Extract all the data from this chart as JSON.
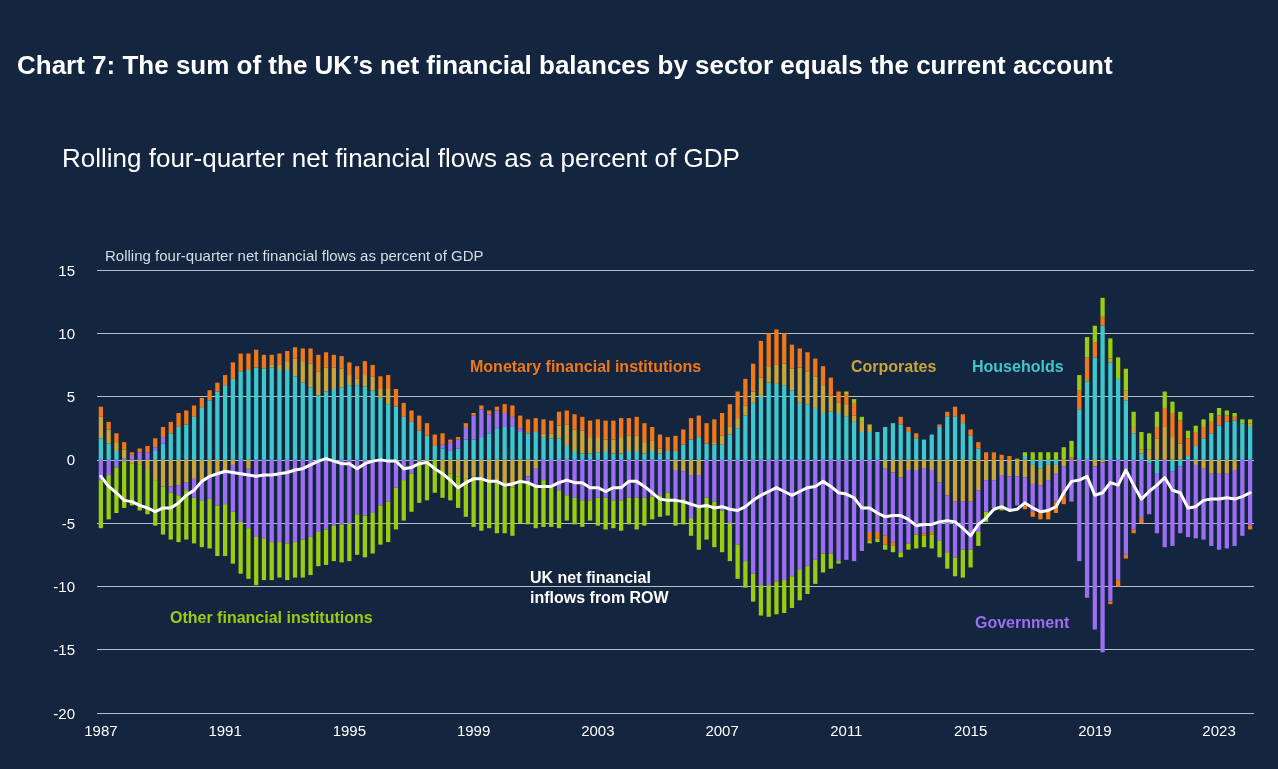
{
  "chart_data": {
    "type": "bar",
    "stacked": true,
    "title": "Chart 7: The sum of the UK’s net financial balances by sector equals the current account",
    "subtitle": "Rolling four-quarter net financial flows as a percent of GDP",
    "ylabel": "Rolling four-quarter net financial flows as percent of GDP",
    "categories": [
      "1987",
      null,
      null,
      null,
      null,
      null,
      null,
      null,
      null,
      null,
      null,
      null,
      null,
      null,
      null,
      null,
      "1991",
      null,
      null,
      null,
      null,
      null,
      null,
      null,
      null,
      null,
      null,
      null,
      null,
      null,
      null,
      null,
      "1995",
      null,
      null,
      null,
      null,
      null,
      null,
      null,
      null,
      null,
      null,
      null,
      null,
      null,
      null,
      null,
      "1999",
      null,
      null,
      null,
      null,
      null,
      null,
      null,
      null,
      null,
      null,
      null,
      null,
      null,
      null,
      null,
      "2003",
      null,
      null,
      null,
      null,
      null,
      null,
      null,
      null,
      null,
      null,
      null,
      null,
      null,
      null,
      null,
      "2007",
      null,
      null,
      null,
      null,
      null,
      null,
      null,
      null,
      null,
      null,
      null,
      null,
      null,
      null,
      null,
      "2011",
      null,
      null,
      null,
      null,
      null,
      null,
      null,
      null,
      null,
      null,
      null,
      null,
      null,
      null,
      null,
      "2015",
      null,
      null,
      null,
      null,
      null,
      null,
      null,
      null,
      null,
      null,
      null,
      null,
      null,
      null,
      null,
      "2019",
      null,
      null,
      null,
      null,
      null,
      null,
      null,
      null,
      null,
      null,
      null,
      null,
      null,
      null,
      null,
      "2023",
      null,
      null,
      null,
      null
    ],
    "ylim": [
      -20,
      15
    ],
    "yticks": [
      -20,
      -15,
      -10,
      -5,
      0,
      5,
      10,
      15
    ],
    "grid": "y",
    "legend": false,
    "marker": "none",
    "series": [
      {
        "name": "Households",
        "color": "#3ec8cc",
        "values": [
          1.7,
          1.3,
          0.7,
          0.1,
          0,
          0,
          0,
          0.7,
          1.3,
          2.1,
          2.6,
          2.8,
          3.4,
          4.1,
          4.7,
          5.4,
          5.9,
          6.4,
          7.0,
          7.1,
          7.3,
          7.2,
          7.3,
          7.1,
          7.1,
          6.6,
          6.1,
          5.7,
          5.1,
          5.4,
          5.6,
          5.7,
          5.9,
          5.9,
          5.8,
          5.5,
          4.9,
          4.4,
          4.2,
          3.4,
          3.0,
          2.3,
          1.9,
          1.1,
          0.9,
          0.7,
          0.9,
          1.6,
          1.6,
          1.8,
          2.1,
          2.5,
          2.6,
          2.6,
          2.2,
          2.1,
          2.2,
          1.8,
          1.7,
          1.7,
          1.1,
          0.7,
          0.5,
          0.5,
          0.6,
          0.7,
          0.5,
          0.5,
          0.7,
          0.7,
          0.5,
          0.7,
          0.5,
          0.7,
          0.7,
          1.2,
          1.6,
          1.8,
          1.3,
          1.2,
          1.2,
          2.0,
          2.5,
          3.5,
          4.5,
          5.0,
          6.1,
          6.0,
          5.9,
          5.5,
          4.5,
          4.4,
          4.1,
          3.7,
          3.8,
          3.7,
          3.4,
          3.0,
          2.2,
          2.2,
          2.2,
          2.6,
          2.9,
          2.8,
          2.2,
          1.7,
          1.6,
          2.0,
          2.6,
          3.4,
          3.4,
          2.9,
          1.9,
          0.9,
          0,
          0,
          0,
          0,
          0,
          0.3,
          -0.4,
          -0.7,
          -0.4,
          -0.4,
          0,
          0,
          4.0,
          6.2,
          8.1,
          10.6,
          7.7,
          6.4,
          4.7,
          2.1,
          0.5,
          -0.3,
          -1.1,
          0,
          -0.9,
          -0.5,
          0.3,
          1.1,
          1.7,
          2.1,
          2.7,
          3.0,
          3.1,
          2.9,
          2.6
        ]
      },
      {
        "name": "Corporates",
        "color": "#c9a53a",
        "values": [
          1.7,
          1.1,
          0.7,
          0.7,
          -0.3,
          -0.4,
          -0.8,
          -1.6,
          -2.1,
          -2.1,
          -2.0,
          -1.8,
          -1.5,
          -1.7,
          -1.3,
          -1.2,
          -0.8,
          -0.4,
          0,
          -0.7,
          0,
          0,
          0.2,
          0.4,
          0.7,
          1.4,
          1.7,
          1.9,
          1.9,
          1.9,
          1.7,
          1.5,
          0.8,
          0.5,
          0.9,
          1.1,
          0.7,
          1.2,
          0,
          0,
          0,
          0,
          0,
          0,
          -0.8,
          -1.1,
          -1.3,
          -1.5,
          -1.3,
          -1.6,
          -1.7,
          -1.8,
          -2.1,
          -2.2,
          -1.6,
          -1.3,
          -0.7,
          0.3,
          0.4,
          1.0,
          1.7,
          1.7,
          1.8,
          1.3,
          1.2,
          0.9,
          1.1,
          1.3,
          1.2,
          1.2,
          0.9,
          0.8,
          0.4,
          0,
          -0.8,
          -0.9,
          -1.2,
          -1.2,
          0,
          0.2,
          0.7,
          0.6,
          0.8,
          0.8,
          0.9,
          1.5,
          1.3,
          1.5,
          1.7,
          1.7,
          2.8,
          2.6,
          2.5,
          2.2,
          1.3,
          0.8,
          1.0,
          0.5,
          0.8,
          0.6,
          0,
          -0.7,
          -1.0,
          -1.4,
          -0.8,
          -0.8,
          -0.7,
          -0.8,
          -1.8,
          -2.8,
          -3.3,
          -3.3,
          -3.3,
          -2.4,
          -1.6,
          -1.6,
          -1.2,
          -1.3,
          -1.3,
          -1.4,
          -1.5,
          -1.3,
          -1.2,
          -0.7,
          -0.5,
          0,
          0,
          0.1,
          -0.5,
          -0.2,
          0.3,
          0,
          0.8,
          0.5,
          0.3,
          0.8,
          1.7,
          2.6,
          1.8,
          1.3,
          0,
          -0.4,
          -0.7,
          -1.1,
          -1.1,
          -1.1,
          -0.8,
          0,
          0.3
        ]
      },
      {
        "name": "Government",
        "color": "#9b6ff0",
        "values": [
          -1.6,
          -1.2,
          -0.6,
          -0.1,
          0.4,
          0.6,
          0.6,
          0.3,
          0.5,
          -0.5,
          -0.8,
          -0.6,
          -1.5,
          -1.5,
          -1.8,
          -2.4,
          -2.7,
          -3.7,
          -4.9,
          -4.7,
          -6.1,
          -6.2,
          -6.5,
          -6.5,
          -6.6,
          -6.5,
          -6.3,
          -6.1,
          -5.7,
          -5.5,
          -5.2,
          -5.1,
          -5.0,
          -4.3,
          -4.4,
          -4.2,
          -3.6,
          -3.3,
          -2.2,
          -1.6,
          -1.1,
          -0.1,
          0,
          0,
          0.3,
          0.7,
          0.7,
          1.0,
          1.9,
          2.2,
          1.5,
          1.4,
          1.1,
          0.8,
          0.3,
          -0.4,
          -1.4,
          -1.6,
          -2.2,
          -2.4,
          -2.8,
          -3.0,
          -3.2,
          -3.2,
          -3.0,
          -3.0,
          -3.2,
          -3.2,
          -3.0,
          -3.0,
          -3.0,
          -2.9,
          -2.8,
          -2.6,
          -2.4,
          -2.2,
          -3.4,
          -2.5,
          -3.0,
          -3.3,
          -4.0,
          -5.0,
          -6.7,
          -8.0,
          -9.0,
          -9.9,
          -9.9,
          -9.6,
          -9.5,
          -9.2,
          -8.7,
          -8.4,
          -7.9,
          -7.4,
          -7.4,
          -8.0,
          -7.9,
          -8.0,
          -7.2,
          -5.7,
          -5.7,
          -5.3,
          -5.5,
          -5.9,
          -5.8,
          -5.1,
          -5.1,
          -4.9,
          -4.6,
          -4.5,
          -4.4,
          -3.8,
          -3.8,
          -3.3,
          -2.5,
          -2.2,
          -2.6,
          -2.6,
          -2.3,
          -2.2,
          -2.2,
          -2.0,
          -2.4,
          -2.2,
          -2.4,
          -3.3,
          -8.0,
          -10.9,
          -12.9,
          -15.0,
          -11.2,
          -9.5,
          -7.5,
          -5.5,
          -4.6,
          -4.0,
          -4.7,
          -6.9,
          -5.9,
          -5.3,
          -6.1,
          -5.8,
          -5.6,
          -5.7,
          -6.0,
          -5.9,
          -6.0,
          -6.0,
          -5.2
        ]
      },
      {
        "name": "Monetary financial institutions",
        "color": "#f07818",
        "values": [
          0.8,
          0.6,
          0.7,
          0.6,
          0.2,
          0.3,
          0.5,
          0.7,
          0.8,
          0.9,
          1.1,
          1.1,
          0.9,
          0.8,
          0.8,
          0.7,
          0.8,
          1.3,
          1.4,
          1.3,
          1.4,
          1.1,
          0.8,
          0.9,
          0.8,
          0.9,
          1.0,
          1.2,
          1.3,
          1.2,
          1.0,
          1.0,
          1.0,
          1.0,
          1.1,
          0.9,
          1.0,
          1.1,
          1.4,
          1.1,
          0.9,
          1.2,
          1.0,
          0.9,
          0.9,
          0.2,
          0.2,
          0.3,
          0.2,
          0.3,
          0.3,
          0.3,
          0.7,
          0.9,
          1.0,
          1.1,
          1.1,
          1.1,
          1.0,
          1.1,
          1.1,
          1.2,
          1.1,
          1.3,
          1.4,
          1.5,
          1.5,
          1.5,
          1.4,
          1.5,
          1.5,
          1.1,
          1.1,
          1.1,
          1.2,
          1.2,
          1.7,
          1.7,
          1.6,
          1.8,
          1.8,
          1.8,
          2.1,
          2.1,
          2.2,
          2.9,
          2.6,
          2.8,
          2.4,
          1.9,
          1.5,
          1.5,
          1.4,
          1.5,
          1.4,
          0.9,
          0.8,
          1.0,
          0,
          -0.7,
          -0.5,
          -0.7,
          -0.3,
          0.6,
          0.4,
          0.4,
          -0.2,
          -0.2,
          0.2,
          0.4,
          0.8,
          0.7,
          0.5,
          0.5,
          0.6,
          0.6,
          0.4,
          0.3,
          0,
          -0.3,
          -0.4,
          -0.7,
          -0.7,
          -0.9,
          -0.6,
          0.2,
          1.5,
          1.8,
          1.2,
          0.7,
          -0.2,
          -0.5,
          -0.3,
          -0.3,
          -0.4,
          0,
          0.9,
          1.5,
          1.9,
          1.8,
          1.4,
          1.1,
          0.9,
          0.9,
          0.8,
          0.5,
          0.3,
          0,
          -0.3
        ]
      },
      {
        "name": "Other financial institutions",
        "color": "#9ccc10",
        "values": [
          -3.8,
          -3.5,
          -3.6,
          -3.7,
          -3.3,
          -3.6,
          -3.5,
          -3.6,
          -3.8,
          -3.7,
          -3.7,
          -3.9,
          -3.6,
          -3.7,
          -3.9,
          -4.0,
          -4.1,
          -4.1,
          -4.1,
          -4.0,
          -3.8,
          -3.3,
          -3.0,
          -2.8,
          -2.9,
          -2.8,
          -3.0,
          -3.0,
          -2.7,
          -2.8,
          -2.8,
          -3.0,
          -3.0,
          -3.2,
          -3.3,
          -3.2,
          -3.1,
          -3.2,
          -3.3,
          -3.2,
          -3.0,
          -3.3,
          -3.2,
          -2.6,
          -2.2,
          -2.1,
          -2.5,
          -3.0,
          -4.0,
          -4.0,
          -3.7,
          -4.0,
          -3.7,
          -3.8,
          -3.4,
          -3.4,
          -3.3,
          -3.7,
          -3.1,
          -3.0,
          -2.0,
          -2.1,
          -2.1,
          -1.6,
          -2.2,
          -2.5,
          -2.2,
          -2.4,
          -2.1,
          -2.5,
          -2.2,
          -1.8,
          -1.7,
          -1.8,
          -2.0,
          -2.0,
          -1.4,
          -3.4,
          -3.3,
          -3.6,
          -3.3,
          -3.0,
          -2.7,
          -2.1,
          -2.2,
          -2.4,
          -2.5,
          -2.6,
          -2.6,
          -2.5,
          -2.4,
          -2.2,
          -1.9,
          -1.5,
          -1.2,
          -0.2,
          0.2,
          0.3,
          0.4,
          -0.2,
          -0.3,
          -0.4,
          -0.5,
          -0.4,
          -0.5,
          -1.1,
          -0.9,
          -1.1,
          -1.3,
          -1.3,
          -1.5,
          -2.2,
          -1.4,
          -1.1,
          -0.8,
          null,
          -0.2,
          null,
          0.1,
          0.3,
          0.6,
          0.6,
          0.6,
          0.6,
          1.0,
          1.3,
          1.2,
          1.6,
          1.3,
          1.5,
          1.6,
          1.7,
          1.7,
          1.2,
          1.4,
          1.3,
          1.2,
          1.3,
          0.9,
          0.7,
          0.6,
          0.5,
          0.6,
          0.7,
          0.6,
          0.4,
          0.3,
          0.3,
          0.3
        ]
      },
      {
        "type": "line",
        "name": "UK net financial inflows from ROW",
        "color": "#ffffff",
        "values": [
          -1.3,
          -2.1,
          -2.6,
          -3.2,
          -3.3,
          -3.6,
          -3.8,
          -4.1,
          -3.8,
          -3.8,
          -3.4,
          -2.8,
          -2.4,
          -1.7,
          -1.3,
          -1.1,
          -0.9,
          -1.0,
          -1.1,
          -1.2,
          -1.3,
          -1.2,
          -1.2,
          -1.1,
          -1.0,
          -0.8,
          -0.7,
          -0.4,
          -0.1,
          0.1,
          -0.1,
          -0.3,
          -0.3,
          -0.7,
          -0.3,
          -0.1,
          0,
          -0.1,
          -0.1,
          -0.7,
          -0.6,
          -0.3,
          -0.2,
          -0.7,
          -1.1,
          -1.6,
          -2.2,
          -1.8,
          -1.5,
          -1.5,
          -1.7,
          -1.7,
          -2.0,
          -1.9,
          -1.7,
          -1.8,
          -2.1,
          -2.1,
          -2.1,
          -1.8,
          -1.6,
          -1.8,
          -1.8,
          -2.2,
          -2.2,
          -2.5,
          -2.2,
          -2.2,
          -1.7,
          -1.7,
          -2.1,
          -2.6,
          -3.1,
          -3.2,
          -3.2,
          -3.3,
          -3.5,
          -3.7,
          -3.6,
          -3.8,
          -3.7,
          -3.9,
          -4.0,
          -3.7,
          -3.2,
          -2.8,
          -2.5,
          -2.2,
          -2.5,
          -2.8,
          -2.5,
          -2.2,
          -2.1,
          -1.7,
          -2.1,
          -2.6,
          -2.7,
          -3.0,
          -3.8,
          -3.8,
          -4.2,
          -4.5,
          -4.4,
          -4.4,
          -4.7,
          -5.2,
          -5.1,
          -5.1,
          -4.9,
          -4.8,
          -4.9,
          -5.4,
          -6.0,
          -5.1,
          -4.6,
          -3.9,
          -3.7,
          -4.0,
          -3.9,
          -3.4,
          -3.8,
          -4.1,
          -4.0,
          -3.7,
          -2.6,
          -1.7,
          -1.6,
          -1.3,
          -2.8,
          -2.6,
          -1.8,
          -2.0,
          -0.8,
          -2.0,
          -3.1,
          -2.5,
          -2.0,
          -1.4,
          -2.4,
          -2.6,
          -3.8,
          -3.7,
          -3.2,
          -3.1,
          -3.1,
          -3.0,
          -3.1,
          -2.9,
          -2.6
        ]
      }
    ]
  }
}
